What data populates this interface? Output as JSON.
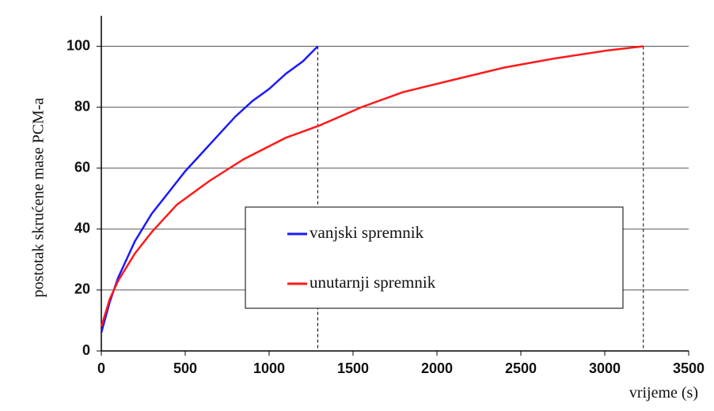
{
  "chart_data": {
    "type": "line",
    "ylabel": "postotak skrućene mase PCM-a",
    "xlabel": "vrijeme (s)",
    "xlim": [
      0,
      3500
    ],
    "xticks": [
      0,
      500,
      1000,
      1500,
      2000,
      2500,
      3000,
      3500
    ],
    "ylim": [
      0,
      110
    ],
    "yticks": [
      0,
      20,
      40,
      60,
      80,
      100
    ],
    "grid": true,
    "vlines": [
      1290,
      3230
    ],
    "series": [
      {
        "name": "vanjski spremnik",
        "color": "#1a1aff",
        "x": [
          0,
          20,
          50,
          100,
          200,
          300,
          400,
          500,
          600,
          700,
          800,
          900,
          1000,
          1100,
          1200,
          1290
        ],
        "values": [
          6,
          10,
          16,
          24,
          36,
          45,
          52,
          59,
          65,
          71,
          77,
          82,
          86,
          91,
          95,
          100
        ]
      },
      {
        "name": "unutarnji spremnik",
        "color": "#ff1a1a",
        "x": [
          0,
          50,
          100,
          200,
          300,
          450,
          650,
          850,
          1100,
          1300,
          1550,
          1800,
          2100,
          2400,
          2700,
          3000,
          3230
        ],
        "values": [
          8,
          17,
          23,
          32,
          39,
          48,
          56,
          63,
          70,
          74,
          80,
          85,
          89,
          93,
          96,
          98.5,
          100
        ]
      }
    ]
  }
}
